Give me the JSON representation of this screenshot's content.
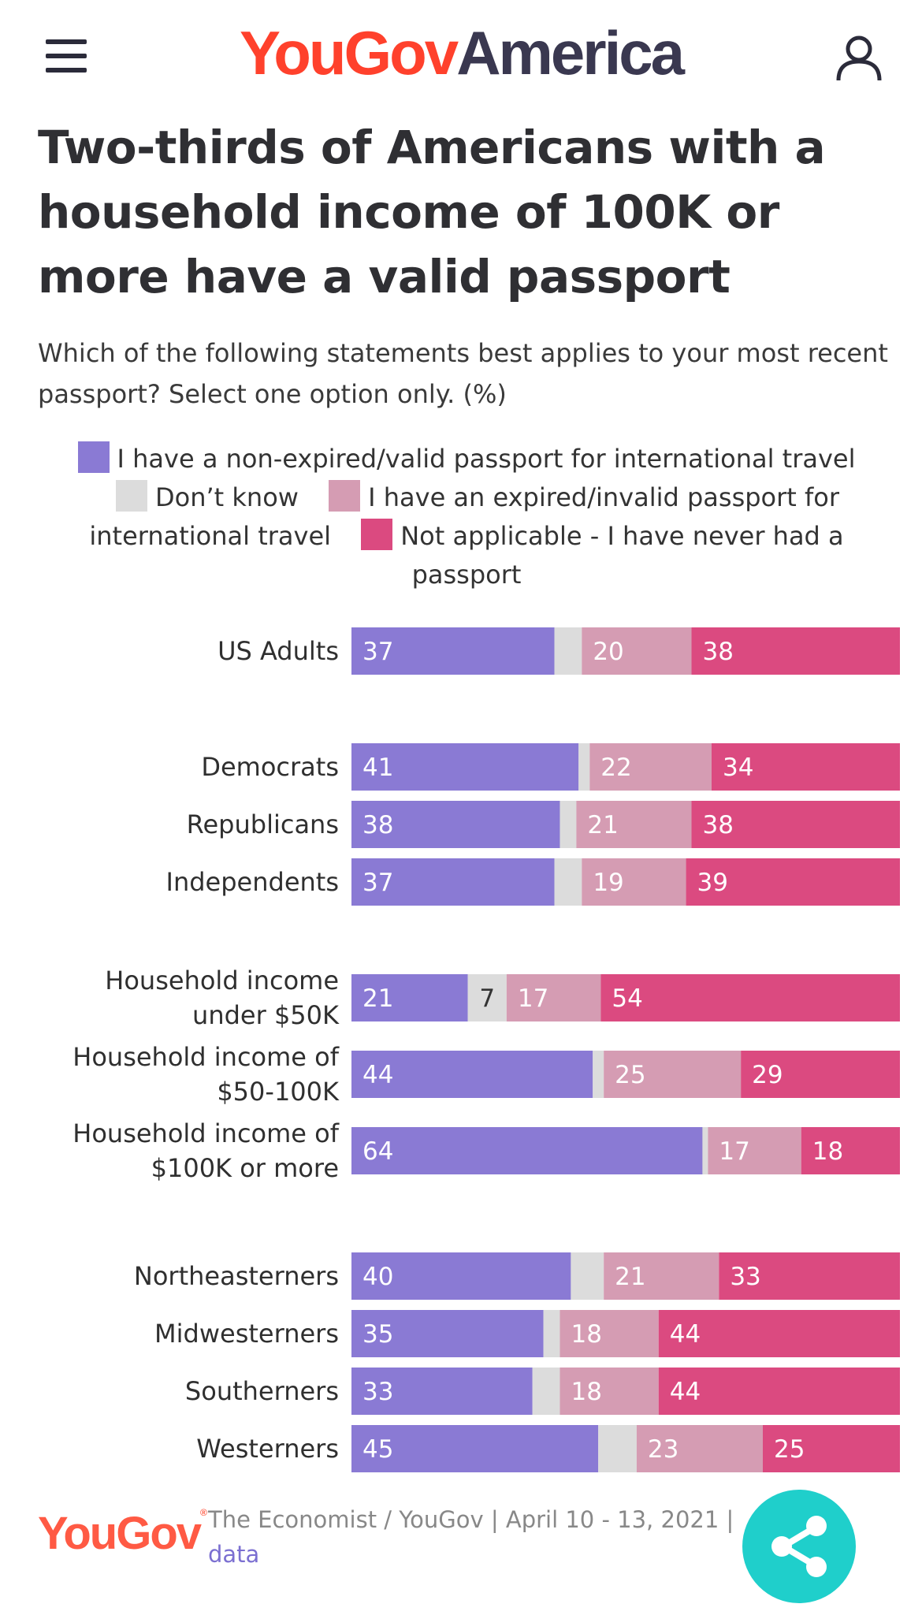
{
  "header": {
    "logo_part1": "YouGov",
    "logo_part2": "America",
    "menu_icon": "hamburger-menu-icon",
    "user_icon": "user-account-icon"
  },
  "title": "Two-thirds of Americans with a household income of 100K or more have a valid passport",
  "subtitle": "Which of the following statements best applies to your most recent passport? Select one option only. (%)",
  "legend": [
    {
      "label": "I have a non-expired/valid passport for international travel",
      "color": "#8a7ad4"
    },
    {
      "label": "Don’t know",
      "color": "#dcdcdc"
    },
    {
      "label": "I have an expired/invalid passport for international travel",
      "color": "#d59cb3"
    },
    {
      "label": "Not applicable - I have never had a passport",
      "color": "#db4a80"
    }
  ],
  "chart_data": {
    "type": "bar",
    "orientation": "horizontal",
    "stacked": true,
    "title": "Two-thirds of Americans with a household income of 100K or more have a valid passport",
    "unit": "%",
    "series": [
      {
        "name": "I have a non-expired/valid passport for international travel",
        "color": "#8a7ad4"
      },
      {
        "name": "Don’t know",
        "color": "#dcdcdc"
      },
      {
        "name": "I have an expired/invalid passport for international travel",
        "color": "#d59cb3"
      },
      {
        "name": "Not applicable - I have never had a passport",
        "color": "#db4a80"
      }
    ],
    "groups": [
      {
        "rows": [
          {
            "label": [
              "US Adults"
            ],
            "values": [
              37,
              5,
              20,
              38
            ],
            "show": [
              true,
              false,
              true,
              true
            ]
          }
        ]
      },
      {
        "rows": [
          {
            "label": [
              "Democrats"
            ],
            "values": [
              41,
              2,
              22,
              34
            ],
            "show": [
              true,
              false,
              true,
              true
            ]
          },
          {
            "label": [
              "Republicans"
            ],
            "values": [
              38,
              3,
              21,
              38
            ],
            "show": [
              true,
              false,
              true,
              true
            ]
          },
          {
            "label": [
              "Independents"
            ],
            "values": [
              37,
              5,
              19,
              39
            ],
            "show": [
              true,
              false,
              true,
              true
            ]
          }
        ]
      },
      {
        "rows": [
          {
            "label": [
              "Household income",
              "under $50K"
            ],
            "values": [
              21,
              7,
              17,
              54
            ],
            "show": [
              true,
              true,
              true,
              true
            ]
          },
          {
            "label": [
              "Household income of",
              "$50-100K"
            ],
            "values": [
              44,
              2,
              25,
              29
            ],
            "show": [
              true,
              false,
              true,
              true
            ]
          },
          {
            "label": [
              "Household income of",
              "$100K or more"
            ],
            "values": [
              64,
              1,
              17,
              18
            ],
            "show": [
              true,
              false,
              true,
              true
            ]
          }
        ]
      },
      {
        "rows": [
          {
            "label": [
              "Northeasterners"
            ],
            "values": [
              40,
              6,
              21,
              33
            ],
            "show": [
              true,
              false,
              true,
              true
            ]
          },
          {
            "label": [
              "Midwesterners"
            ],
            "values": [
              35,
              3,
              18,
              44
            ],
            "show": [
              true,
              false,
              true,
              true
            ]
          },
          {
            "label": [
              "Southerners"
            ],
            "values": [
              33,
              5,
              18,
              44
            ],
            "show": [
              true,
              false,
              true,
              true
            ]
          },
          {
            "label": [
              "Westerners"
            ],
            "values": [
              45,
              7,
              23,
              25
            ],
            "show": [
              true,
              false,
              true,
              true
            ]
          }
        ]
      }
    ]
  },
  "footer": {
    "logo": "YouGov",
    "source": "The Economist / YouGov | April 10 - 13, 2021 |",
    "data_link": "data",
    "share_icon": "share-icon"
  }
}
